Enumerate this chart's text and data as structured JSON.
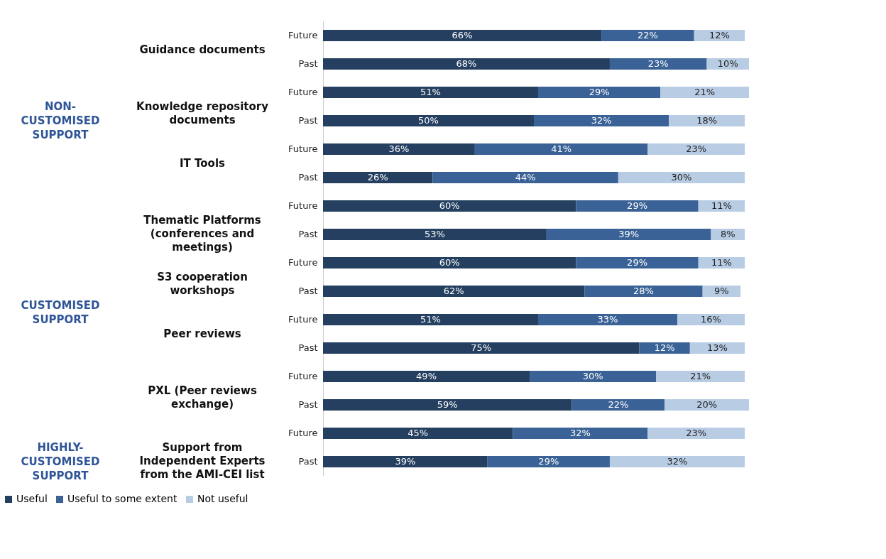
{
  "chart_data": {
    "type": "bar",
    "orientation": "horizontal",
    "stacked": true,
    "legend": "bottom",
    "categories": [
      "Future",
      "Past",
      "Future",
      "Past",
      "Future",
      "Past",
      "Future",
      "Past",
      "Future",
      "Past",
      "Future",
      "Past",
      "Future",
      "Past",
      "Future",
      "Past"
    ],
    "series": [
      {
        "name": "Useful",
        "color": "#243f60",
        "values": [
          66,
          68,
          51,
          50,
          36,
          26,
          60,
          53,
          60,
          62,
          51,
          75,
          49,
          59,
          45,
          39
        ],
        "value_labels": [
          "66%",
          "68%",
          "51%",
          "50%",
          "36%",
          "26%",
          "60%",
          "53%",
          "60%",
          "62%",
          "51%",
          "75%",
          "49%",
          "59%",
          "45%",
          "39%"
        ]
      },
      {
        "name": "Useful to some extent",
        "color": "#3a6296",
        "values": [
          22,
          23,
          29,
          32,
          41,
          44,
          29,
          39,
          29,
          28,
          33,
          12,
          30,
          22,
          32,
          29
        ],
        "value_labels": [
          "22%",
          "23%",
          "29%",
          "32%",
          "41%",
          "44%",
          "29%",
          "39%",
          "29%",
          "28%",
          "33%",
          "12%",
          "30%",
          "22%",
          "32%",
          "29%"
        ]
      },
      {
        "name": "Not useful",
        "color": "#b8cce4",
        "values": [
          12,
          10,
          21,
          18,
          23,
          30,
          11,
          8,
          11,
          9,
          16,
          13,
          21,
          20,
          23,
          32
        ],
        "value_labels": [
          "12%",
          "10%",
          "21%",
          "18%",
          "23%",
          "30%",
          "11%",
          "8%",
          "11%",
          "9%",
          "16%",
          "13%",
          "21%",
          "20%",
          "23%",
          "32%"
        ]
      }
    ],
    "annotations": [
      "Guidance documents",
      "Knowledge repository\ndocuments",
      "IT Tools",
      "Thematic Platforms\n(conferences and\nmeetings)",
      "S3 cooperation\nworkshops",
      "Peer reviews",
      "PXL (Peer reviews\nexchange)",
      "Support from\nIndependent Experts\nfrom the AMI-CEI list",
      "NON-\nCUSTOMISED\nSUPPORT",
      "CUSTOMISED\nSUPPORT",
      "HIGHLY-\nCUSTOMISED\nSUPPORT"
    ]
  }
}
